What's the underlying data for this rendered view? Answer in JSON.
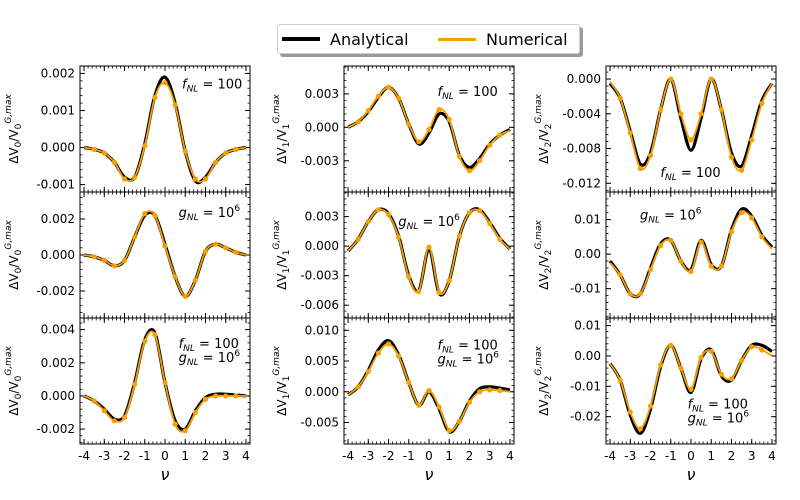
{
  "legend": {
    "items": [
      {
        "label": "Analytical",
        "color": "#000000"
      },
      {
        "label": "Numerical",
        "color": "#f5a000"
      }
    ]
  },
  "chart_data": {
    "type": "line",
    "xlabel": "ν",
    "x_range": [
      -4.2,
      4.2
    ],
    "x_ticks": [
      -4,
      -3,
      -2,
      -1,
      0,
      1,
      2,
      3,
      4
    ],
    "x_tick_labels": [
      "-4",
      "-3",
      "-2",
      "-1",
      "0",
      "1",
      "2",
      "3",
      "4"
    ],
    "series_names": [
      "Analytical",
      "Numerical"
    ],
    "x": [
      -4.0,
      -3.5,
      -3.0,
      -2.5,
      -2.0,
      -1.5,
      -1.0,
      -0.5,
      0.0,
      0.5,
      1.0,
      1.5,
      2.0,
      2.5,
      3.0,
      3.5,
      4.0
    ],
    "panels": [
      {
        "row": 0,
        "col": 0,
        "ylabel": "ΔV0/V0^{G,max}",
        "annotation": [
          "f_NL = 100"
        ],
        "ylim": [
          -0.0012,
          0.0022
        ],
        "yticks": [
          -0.001,
          0.0,
          0.001,
          0.002
        ],
        "ytick_labels": [
          "-0.001",
          "0.000",
          "0.001",
          "0.002"
        ],
        "analytical": [
          0.0,
          -5e-05,
          -0.00015,
          -0.0004,
          -0.0008,
          -0.0008,
          0.0001,
          0.0014,
          0.0019,
          0.0012,
          -0.0001,
          -0.0009,
          -0.0008,
          -0.0004,
          -0.00015,
          -5e-05,
          0.0
        ],
        "numerical": [
          0.0,
          -5e-05,
          -0.00015,
          -0.0004,
          -0.00085,
          -0.0008,
          5e-05,
          0.00135,
          0.00175,
          0.00115,
          -0.0001,
          -0.00085,
          -0.00085,
          -0.0004,
          -0.00015,
          -5e-05,
          0.0
        ]
      },
      {
        "row": 0,
        "col": 1,
        "ylabel": "ΔV1/V1^{G,max}",
        "annotation": [
          "f_NL = 100"
        ],
        "ylim": [
          -0.0058,
          0.0055
        ],
        "yticks": [
          -0.003,
          0.0,
          0.003
        ],
        "ytick_labels": [
          "-0.003",
          "0.000",
          "0.003"
        ],
        "analytical": [
          0.0,
          0.0005,
          0.0014,
          0.0027,
          0.0036,
          0.0026,
          0.0003,
          -0.0015,
          -0.0005,
          0.0012,
          0.0005,
          -0.0025,
          -0.0036,
          -0.0028,
          -0.0015,
          -0.0007,
          -0.0002
        ],
        "numerical": [
          0.0,
          0.0005,
          0.0015,
          0.0028,
          0.0036,
          0.0026,
          0.0003,
          -0.0013,
          -0.0002,
          0.0016,
          0.0007,
          -0.0026,
          -0.0039,
          -0.003,
          -0.0016,
          -0.0007,
          -0.0003
        ]
      },
      {
        "row": 0,
        "col": 2,
        "ylabel": "ΔV2/V2^{G,max}",
        "annotation": [
          "f_NL = 100"
        ],
        "ylim": [
          -0.013,
          0.0015
        ],
        "yticks": [
          -0.012,
          -0.008,
          -0.004,
          0.0
        ],
        "ytick_labels": [
          "-0.012",
          "-0.008",
          "-0.004",
          "0.000"
        ],
        "analytical": [
          -0.0005,
          -0.0022,
          -0.006,
          -0.0098,
          -0.0085,
          -0.0035,
          0.0,
          -0.0045,
          -0.0082,
          -0.0045,
          0.0,
          -0.0035,
          -0.0085,
          -0.01,
          -0.0065,
          -0.0025,
          -0.0005
        ],
        "numerical": [
          -0.0003,
          -0.0022,
          -0.0062,
          -0.0103,
          -0.0088,
          -0.0035,
          0.0,
          -0.004,
          -0.007,
          -0.004,
          0.0,
          -0.0035,
          -0.009,
          -0.0105,
          -0.007,
          -0.0028,
          -0.0005
        ]
      },
      {
        "row": 1,
        "col": 0,
        "ylabel": "ΔV0/V0^{G,max}",
        "annotation": [
          "g_NL = 10^6"
        ],
        "ylim": [
          -0.0035,
          0.0035
        ],
        "yticks": [
          -0.002,
          0.0,
          0.002
        ],
        "ytick_labels": [
          "-0.002",
          "0.000",
          "0.002"
        ],
        "analytical": [
          0.0,
          -0.0001,
          -0.0003,
          -0.0006,
          -0.0003,
          0.001,
          0.0022,
          0.0022,
          0.0006,
          -0.0012,
          -0.0023,
          -0.0014,
          0.0002,
          0.0006,
          0.0004,
          0.00015,
          0.0
        ],
        "numerical": [
          0.0,
          -0.0001,
          -0.0003,
          -0.0006,
          -0.0003,
          0.001,
          0.0023,
          0.0022,
          0.0005,
          -0.0012,
          -0.0023,
          -0.0014,
          0.0002,
          0.0006,
          0.0004,
          0.00015,
          0.0
        ]
      },
      {
        "row": 1,
        "col": 1,
        "ylabel": "ΔV1/V1^{G,max}",
        "annotation": [
          "g_NL = 10^6"
        ],
        "ylim": [
          -0.0073,
          0.0055
        ],
        "yticks": [
          -0.006,
          -0.003,
          0.0,
          0.003
        ],
        "ytick_labels": [
          "-0.006",
          "-0.003",
          "0.000",
          "0.003"
        ],
        "analytical": [
          -0.0005,
          0.0007,
          0.0025,
          0.0037,
          0.0033,
          0.001,
          -0.003,
          -0.0045,
          -0.0003,
          -0.0048,
          -0.0035,
          0.001,
          0.0034,
          0.0037,
          0.0024,
          0.0008,
          -0.0003
        ],
        "numerical": [
          -0.0005,
          0.0007,
          0.0025,
          0.0037,
          0.0032,
          0.0009,
          -0.0031,
          -0.0046,
          -0.0001,
          -0.0047,
          -0.0035,
          0.001,
          0.0034,
          0.0036,
          0.0023,
          0.0007,
          -0.0003
        ]
      },
      {
        "row": 1,
        "col": 2,
        "ylabel": "ΔV2/V2^{G,max}",
        "annotation": [
          "g_NL = 10^6"
        ],
        "ylim": [
          -0.0185,
          0.018
        ],
        "yticks": [
          -0.01,
          0.0,
          0.01
        ],
        "ytick_labels": [
          "-0.01",
          "0.00",
          "0.01"
        ],
        "analytical": [
          -0.002,
          -0.006,
          -0.0115,
          -0.0115,
          -0.004,
          0.003,
          0.004,
          -0.002,
          -0.0045,
          0.004,
          -0.003,
          -0.0035,
          0.007,
          0.013,
          0.011,
          0.0055,
          0.002
        ],
        "numerical": [
          -0.0025,
          -0.006,
          -0.0115,
          -0.0115,
          -0.0045,
          0.0025,
          0.004,
          -0.002,
          -0.005,
          0.0035,
          -0.0035,
          -0.0035,
          0.0065,
          0.012,
          0.0105,
          0.005,
          0.0015
        ]
      },
      {
        "row": 2,
        "col": 0,
        "ylabel": "ΔV0/V0^{G,max}",
        "annotation": [
          "f_NL = 100",
          "g_NL = 10^6"
        ],
        "ylim": [
          -0.0029,
          0.0047
        ],
        "yticks": [
          -0.002,
          0.0,
          0.002,
          0.004
        ],
        "ytick_labels": [
          "-0.002",
          "0.000",
          "0.002",
          "0.004"
        ],
        "analytical": [
          0.0,
          -0.0003,
          -0.0008,
          -0.0014,
          -0.0012,
          0.0008,
          0.0034,
          0.0038,
          0.0008,
          -0.0015,
          -0.002,
          -0.0009,
          -0.0001,
          0.0001,
          0.0001,
          5e-05,
          0.0
        ],
        "numerical": [
          0.0,
          -0.0003,
          -0.0009,
          -0.0015,
          -0.0013,
          0.0007,
          0.0033,
          0.0037,
          0.0008,
          -0.0017,
          -0.0021,
          -0.001,
          -0.0002,
          0.0,
          0.0,
          0.0,
          0.0
        ]
      },
      {
        "row": 2,
        "col": 1,
        "ylabel": "ΔV1/V1^{G,max}",
        "annotation": [
          "f_NL = 100",
          "g_NL = 10^6"
        ],
        "ylim": [
          -0.0085,
          0.012
        ],
        "yticks": [
          -0.005,
          0.0,
          0.005,
          0.01
        ],
        "ytick_labels": [
          "-0.005",
          "0.000",
          "0.005",
          "0.010"
        ],
        "analytical": [
          -0.0005,
          0.0008,
          0.0035,
          0.0068,
          0.0083,
          0.006,
          0.0015,
          -0.0022,
          0.0,
          -0.0028,
          -0.0065,
          -0.0048,
          -0.0015,
          0.0005,
          0.0008,
          0.0006,
          0.0003
        ],
        "numerical": [
          -0.0005,
          0.0008,
          0.0033,
          0.0063,
          0.0078,
          0.0058,
          0.0015,
          -0.0022,
          0.0002,
          -0.0025,
          -0.0063,
          -0.0048,
          -0.0017,
          0.0,
          0.0003,
          0.0002,
          0.0
        ]
      },
      {
        "row": 2,
        "col": 2,
        "ylabel": "ΔV2/V2^{G,max}",
        "annotation": [
          "f_NL = 100",
          "g_NL = 10^6"
        ],
        "ylim": [
          -0.029,
          0.0125
        ],
        "yticks": [
          -0.02,
          -0.01,
          0.0,
          0.01
        ],
        "ytick_labels": [
          "-0.02",
          "-0.01",
          "0.00",
          "0.01"
        ],
        "analytical": [
          -0.0025,
          -0.008,
          -0.0195,
          -0.0255,
          -0.0175,
          -0.0035,
          0.0035,
          -0.004,
          -0.012,
          -0.001,
          0.002,
          -0.0065,
          -0.008,
          -0.0015,
          0.0035,
          0.0035,
          0.0015
        ],
        "numerical": [
          -0.0025,
          -0.008,
          -0.0185,
          -0.024,
          -0.0165,
          -0.003,
          0.0035,
          -0.004,
          -0.011,
          -0.0005,
          0.0015,
          -0.006,
          -0.0075,
          -0.0015,
          0.003,
          0.002,
          0.0
        ]
      }
    ]
  }
}
